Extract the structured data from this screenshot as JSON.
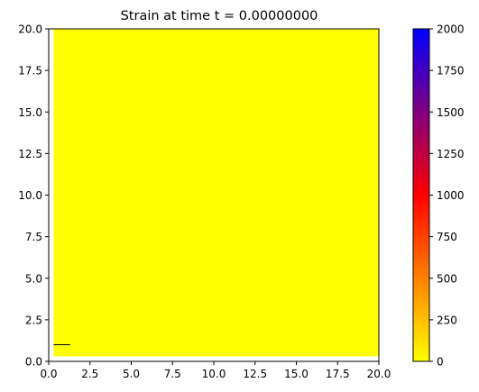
{
  "chart_data": {
    "type": "heatmap",
    "title": "Strain at time t =     0.00000000",
    "xlabel": "",
    "ylabel": "",
    "xlim": [
      0.0,
      20.0
    ],
    "ylim": [
      0.0,
      20.0
    ],
    "x_ticks": [
      "0.0",
      "2.5",
      "5.0",
      "7.5",
      "10.0",
      "12.5",
      "15.0",
      "17.5",
      "20.0"
    ],
    "x_tick_values": [
      0,
      2.5,
      5,
      7.5,
      10,
      12.5,
      15,
      17.5,
      20
    ],
    "y_ticks": [
      "0.0",
      "2.5",
      "5.0",
      "7.5",
      "10.0",
      "12.5",
      "15.0",
      "17.5",
      "20.0"
    ],
    "y_tick_values": [
      0,
      2.5,
      5,
      7.5,
      10,
      12.5,
      15,
      17.5,
      20
    ],
    "field": {
      "description_value": 0,
      "extent": {
        "x": [
          0.3,
          20.0
        ],
        "y": [
          0.3,
          20.0
        ]
      },
      "color": "#ffff00"
    },
    "feature": {
      "x": [
        0.3,
        1.3
      ],
      "y": 1.0
    },
    "grid": false,
    "colorbar": {
      "min": 0,
      "max": 2000,
      "ticks": [
        "0",
        "250",
        "500",
        "750",
        "1000",
        "1250",
        "1500",
        "1750",
        "2000"
      ],
      "tick_values": [
        0,
        250,
        500,
        750,
        1000,
        1250,
        1500,
        1750,
        2000
      ],
      "colormap": [
        "#ffff00",
        "#ff8000",
        "#ff0000",
        "#800080",
        "#0000ff"
      ]
    }
  }
}
